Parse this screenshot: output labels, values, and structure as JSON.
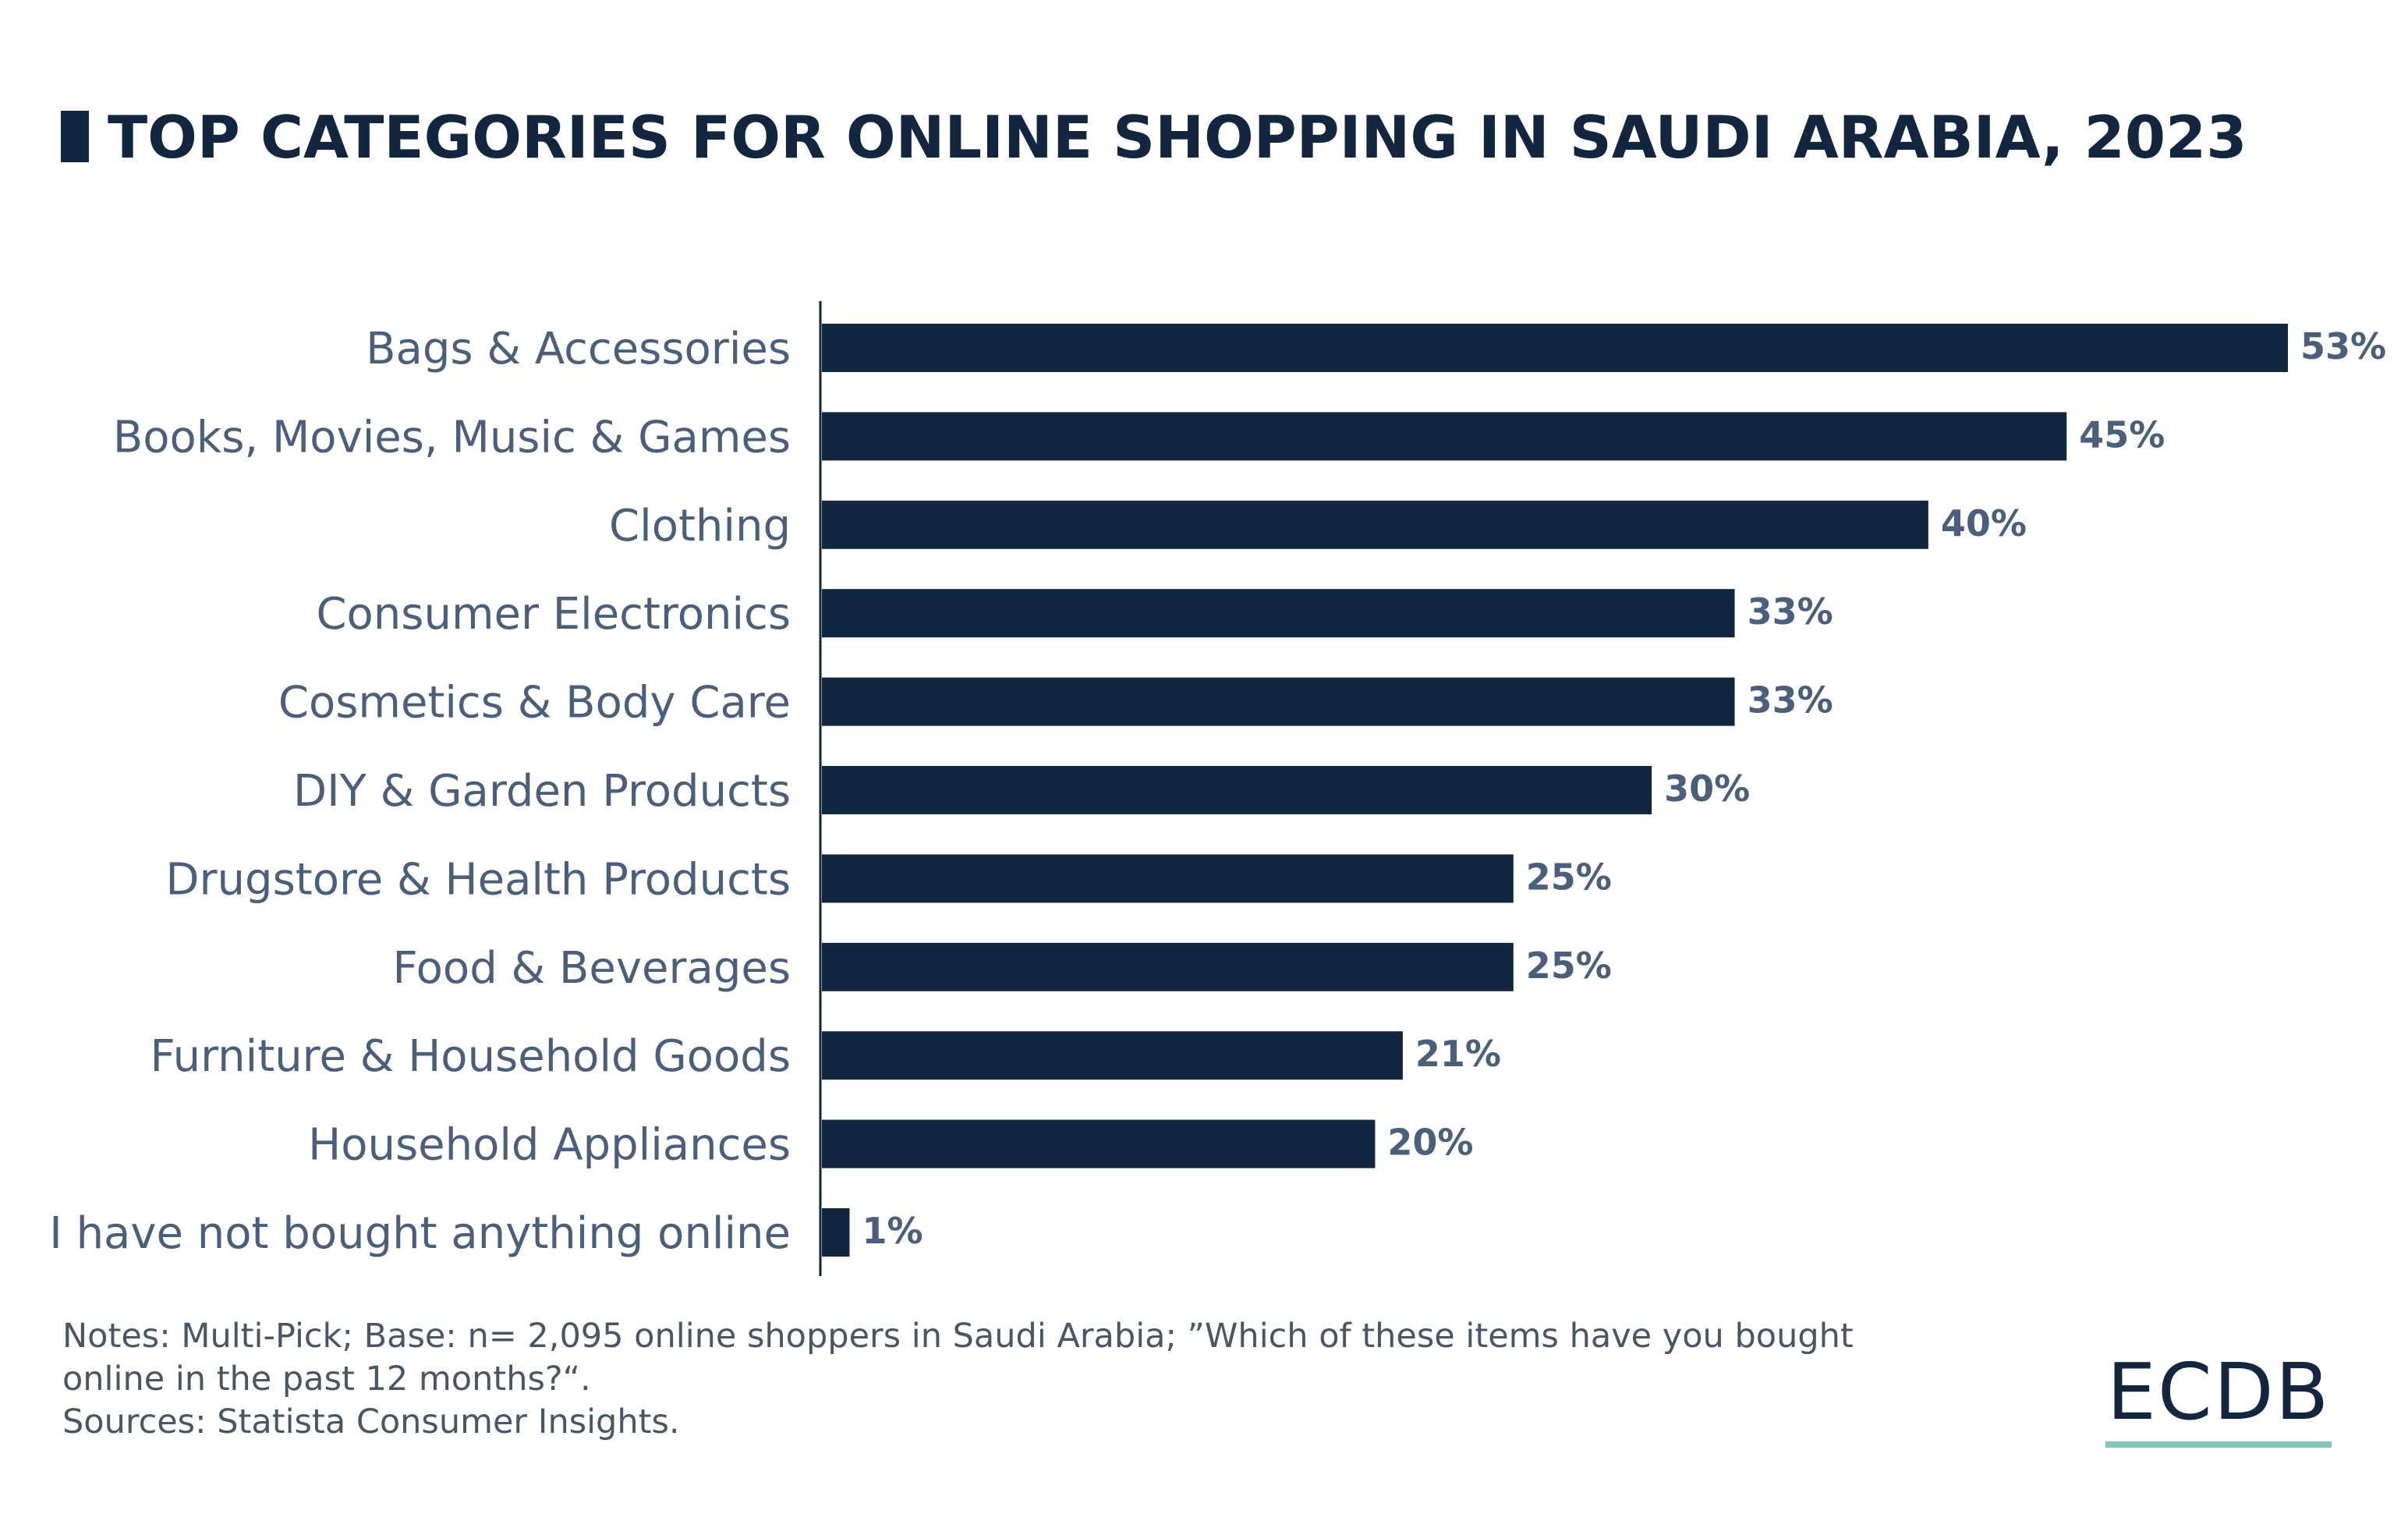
{
  "chart_data": {
    "type": "bar",
    "orientation": "horizontal",
    "title": "TOP CATEGORIES FOR ONLINE SHOPPING IN SAUDI ARABIA, 2023",
    "categories": [
      "Bags & Accessories",
      "Books, Movies, Music & Games",
      "Clothing",
      "Consumer Electronics",
      "Cosmetics & Body Care",
      "DIY & Garden Products",
      "Drugstore & Health Products",
      "Food & Beverages",
      "Furniture & Household Goods",
      "Household Appliances",
      "I have not bought anything online"
    ],
    "values": [
      53,
      45,
      40,
      33,
      33,
      30,
      25,
      25,
      21,
      20,
      1
    ],
    "value_labels": [
      "53%",
      "45%",
      "40%",
      "33%",
      "33%",
      "30%",
      "25%",
      "25%",
      "21%",
      "20%",
      "1%"
    ],
    "unit": "%",
    "xlabel": "",
    "ylabel": "",
    "xlim": [
      0,
      53
    ],
    "grid": false,
    "bar_color": "#12263f"
  },
  "notes": {
    "line1": "Notes: Multi-Pick; Base: n= 2,095 online shoppers in Saudi Arabia; ”Which of these items have you bought",
    "line2": "online in the past 12 months?“.",
    "line3": "Sources: Statista Consumer Insights."
  },
  "logo": {
    "text": "ECDB",
    "accent_color": "#7cc8b4"
  }
}
